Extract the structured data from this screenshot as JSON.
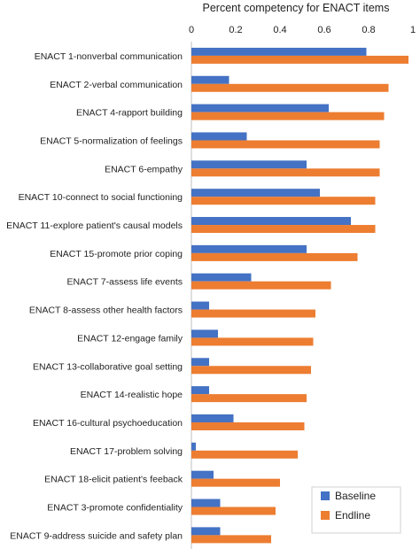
{
  "chart_data": {
    "type": "bar",
    "orientation": "horizontal",
    "title": "Percent competency for ENACT items",
    "xlabel": "",
    "ylabel": "",
    "xlim": [
      0,
      1
    ],
    "xticks": [
      "0",
      "0.2",
      "0.4",
      "0.6",
      "0.8",
      "1"
    ],
    "x_axis_position": "top",
    "grid": false,
    "legend_position": "bottom-right",
    "categories": [
      "ENACT 1-nonverbal communication",
      "ENACT 2-verbal communication",
      "ENACT 4-rapport building",
      "ENACT 5-normalization of feelings",
      "ENACT 6-empathy",
      "ENACT 10-connect to social functioning",
      "ENACT 11-explore patient's causal models",
      "ENACT 15-promote prior coping",
      "ENACT 7-assess life events",
      "ENACT 8-assess other health factors",
      "ENACT 12-engage family",
      "ENACT 13-collaborative goal setting",
      "ENACT 14-realistic hope",
      "ENACT 16-cultural psychoeducation",
      "ENACT 17-problem solving",
      "ENACT 18-elicit patient's feeback",
      "ENACT 3-promote confidentiality",
      "ENACT 9-address suicide and safety plan"
    ],
    "series": [
      {
        "name": "Baseline",
        "color": "#4472c4",
        "values": [
          0.79,
          0.17,
          0.62,
          0.25,
          0.52,
          0.58,
          0.72,
          0.52,
          0.27,
          0.08,
          0.12,
          0.08,
          0.08,
          0.19,
          0.02,
          0.1,
          0.13,
          0.13
        ]
      },
      {
        "name": "Endline",
        "color": "#ed7d31",
        "values": [
          0.98,
          0.89,
          0.87,
          0.85,
          0.85,
          0.83,
          0.83,
          0.75,
          0.63,
          0.56,
          0.55,
          0.54,
          0.52,
          0.51,
          0.48,
          0.4,
          0.38,
          0.36
        ]
      }
    ]
  }
}
